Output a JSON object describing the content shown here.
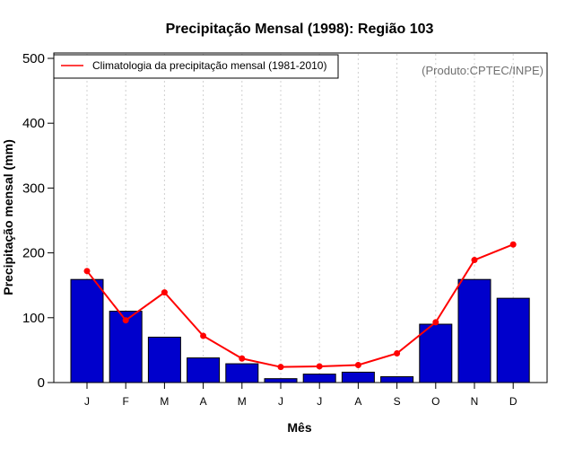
{
  "chart_data": {
    "type": "bar",
    "title": "Precipitação Mensal (1998): Região 103",
    "xlabel": "Mês",
    "ylabel": "Precipitação mensal (mm)",
    "ylim": [
      0,
      500
    ],
    "yticks": [
      0,
      100,
      200,
      300,
      400,
      500
    ],
    "categories": [
      "J",
      "F",
      "M",
      "A",
      "M",
      "J",
      "J",
      "A",
      "S",
      "O",
      "N",
      "D"
    ],
    "series": [
      {
        "name": "Precipitação mensal 1998",
        "type": "bar",
        "color": "#0000cc",
        "values": [
          159,
          110,
          70,
          38,
          29,
          6,
          13,
          16,
          9,
          90,
          159,
          130
        ]
      },
      {
        "name": "Climatologia da precipitação mensal (1981-2010)",
        "type": "line",
        "color": "#ff0000",
        "values": [
          172,
          96,
          139,
          72,
          37,
          24,
          25,
          27,
          45,
          93,
          189,
          213
        ]
      }
    ],
    "legend": {
      "position": "top-left",
      "entries": [
        "Climatologia da precipitação mensal (1981-2010)"
      ]
    },
    "annotation": "(Produto:CPTEC/INPE)",
    "grid": "vertical-dotted"
  }
}
